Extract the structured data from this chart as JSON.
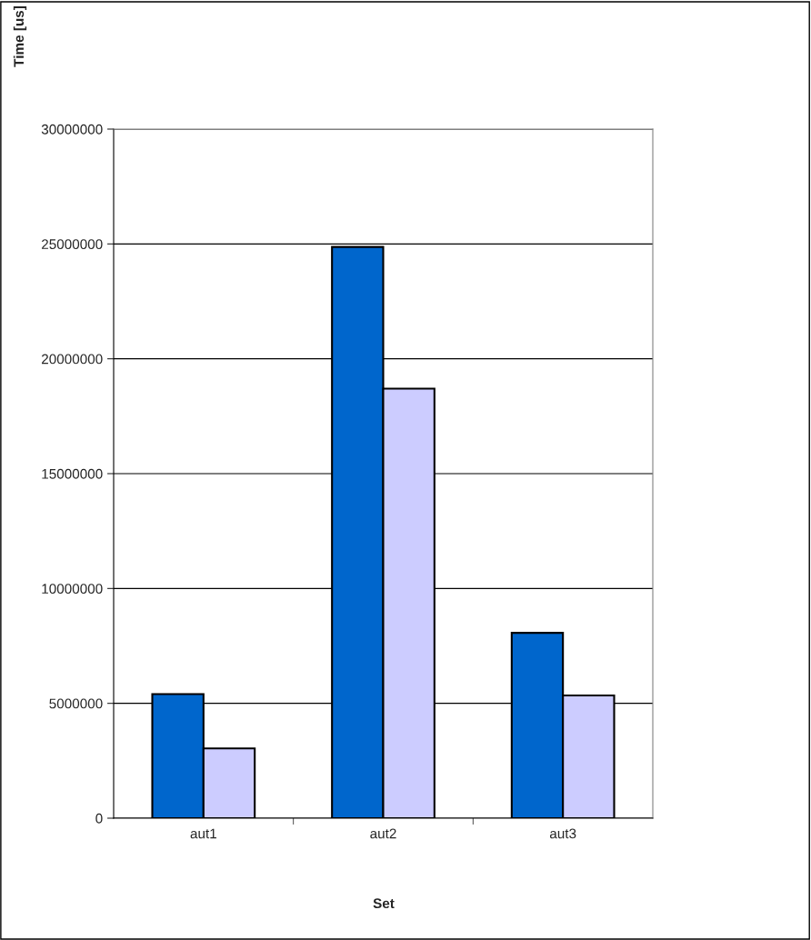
{
  "chart_data": {
    "type": "bar",
    "xlabel": "Set",
    "ylabel": "Time [us]",
    "categories": [
      "aut1",
      "aut2",
      "aut3"
    ],
    "series": [
      {
        "color": "#0066cc",
        "values": [
          5400000,
          24870000,
          8070000
        ]
      },
      {
        "color": "#ccccff",
        "values": [
          3040000,
          18700000,
          5340000
        ]
      }
    ],
    "ylim": [
      0,
      30000000
    ],
    "yticks": [
      0,
      5000000,
      10000000,
      15000000,
      20000000,
      25000000,
      30000000
    ],
    "grid": "y"
  }
}
